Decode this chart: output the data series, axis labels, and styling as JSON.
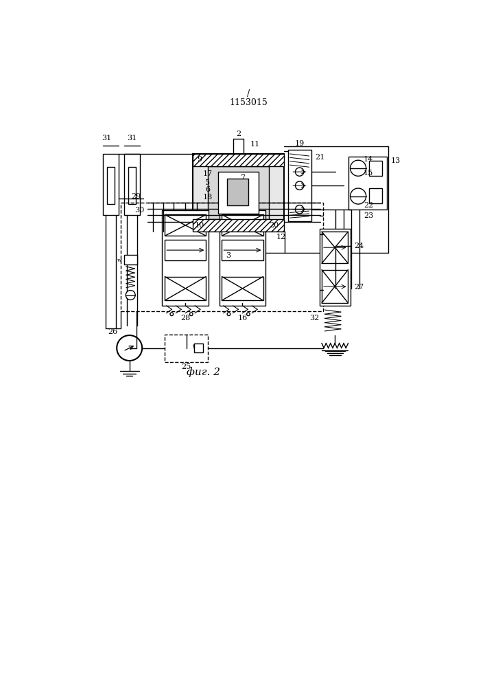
{
  "title": "1153015",
  "slash": "/",
  "fig_label": "фиг. 2",
  "bg_color": "#ffffff",
  "line_color": "#000000",
  "lw": 1.0,
  "lw2": 1.5
}
